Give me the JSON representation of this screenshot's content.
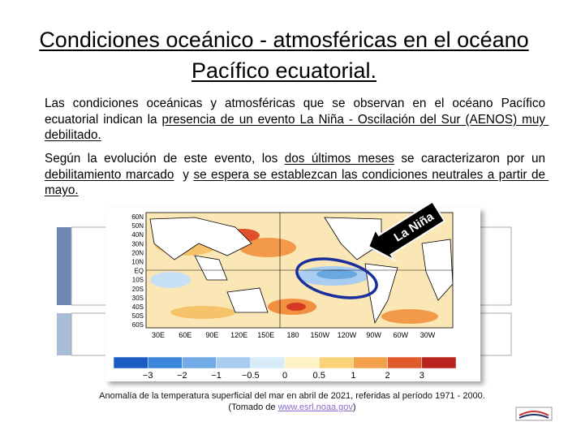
{
  "title": "Condiciones oceánico - atmosféricas en el océano Pacífico ecuatorial.",
  "paragraphs": [
    [
      {
        "text": "Las condiciones oceánicas y atmosféricas que se observan en el océano Pacífico ecuatorial indican la ",
        "underline": false
      },
      {
        "text": "presencia de un evento La Niña - Oscilación del Sur (AENOS) muy debilitado.",
        "underline": true
      }
    ],
    [
      {
        "text": "Según la evolución de este evento, los ",
        "underline": false
      },
      {
        "text": "dos últimos meses",
        "underline": true
      },
      {
        "text": " se caracterizaron por un ",
        "underline": false
      },
      {
        "text": "debilitamiento marcado",
        "underline": true
      },
      {
        "text": "  y ",
        "underline": false
      },
      {
        "text": "se espera se establezcan las condiciones neutrales a partir de mayo.",
        "underline": true
      }
    ]
  ],
  "map": {
    "lat_labels": [
      "60N",
      "50N",
      "40N",
      "30N",
      "20N",
      "10N",
      "EQ",
      "10S",
      "20S",
      "30S",
      "40S",
      "50S",
      "60S"
    ],
    "lon_labels": [
      "30E",
      "60E",
      "90E",
      "120E",
      "150E",
      "180",
      "150W",
      "120W",
      "90W",
      "60W",
      "30W"
    ],
    "callout": "La Niña",
    "colorbar_labels": [
      "−3",
      "−2",
      "−1",
      "−0.5",
      "0",
      "0.5",
      "1",
      "2",
      "3"
    ]
  },
  "caption": {
    "line1": "Anomalía de la temperatura superficial del mar en abril de 2021, referidas al período 1971 - 2000.",
    "prefix": "(Tomado de ",
    "link": "www.esrl.noaa.gov",
    "suffix": ")"
  }
}
